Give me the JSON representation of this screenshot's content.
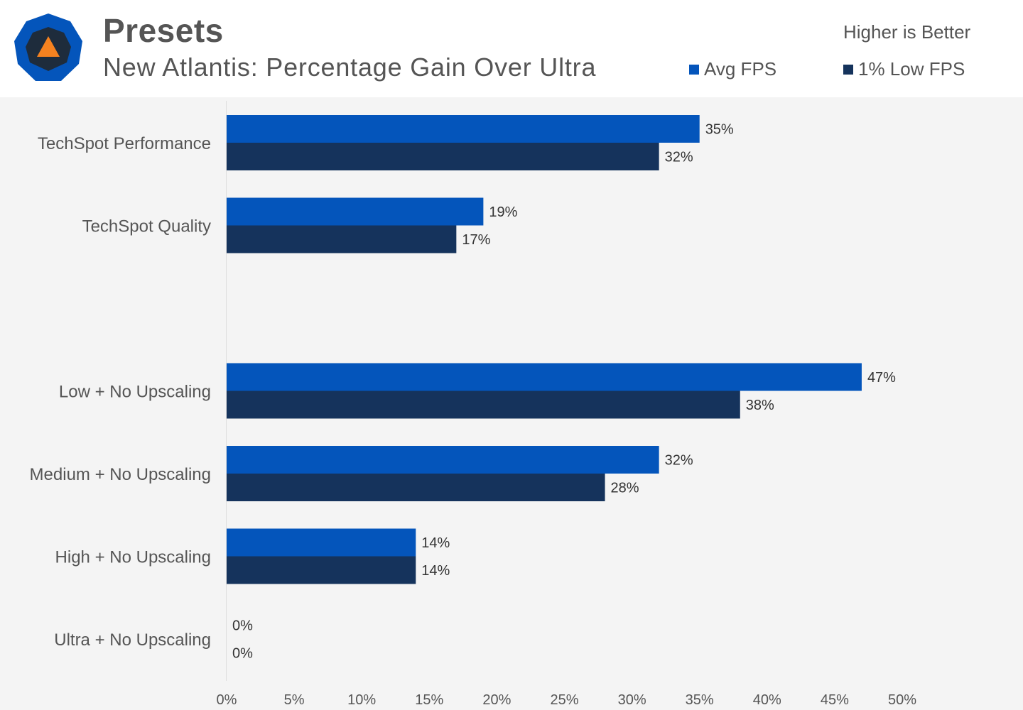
{
  "header": {
    "title": "Presets",
    "subtitle": "New Atlantis: Percentage Gain Over Ultra",
    "note": "Higher is Better",
    "logo_icon": "techspot-logo-icon"
  },
  "legend": [
    {
      "label": "Avg FPS",
      "color": "#0455bb"
    },
    {
      "label": "1% Low FPS",
      "color": "#15335c"
    }
  ],
  "chart_data": {
    "type": "bar",
    "orientation": "horizontal",
    "title": "Presets",
    "subtitle": "New Atlantis: Percentage Gain Over Ultra",
    "categories": [
      "TechSpot Performance",
      "TechSpot Quality",
      "",
      "Low + No Upscaling",
      "Medium + No Upscaling",
      "High + No Upscaling",
      "Ultra + No Upscaling"
    ],
    "series": [
      {
        "name": "Avg FPS",
        "color": "#0455bb",
        "values": [
          35,
          19,
          null,
          47,
          32,
          14,
          0
        ]
      },
      {
        "name": "1% Low FPS",
        "color": "#15335c",
        "values": [
          32,
          17,
          null,
          38,
          28,
          14,
          0
        ]
      }
    ],
    "value_suffix": "%",
    "xlim": [
      0,
      50
    ],
    "xticks": [
      0,
      5,
      10,
      15,
      20,
      25,
      30,
      35,
      40,
      45,
      50
    ],
    "grid": false,
    "legend_position": "top-right"
  }
}
